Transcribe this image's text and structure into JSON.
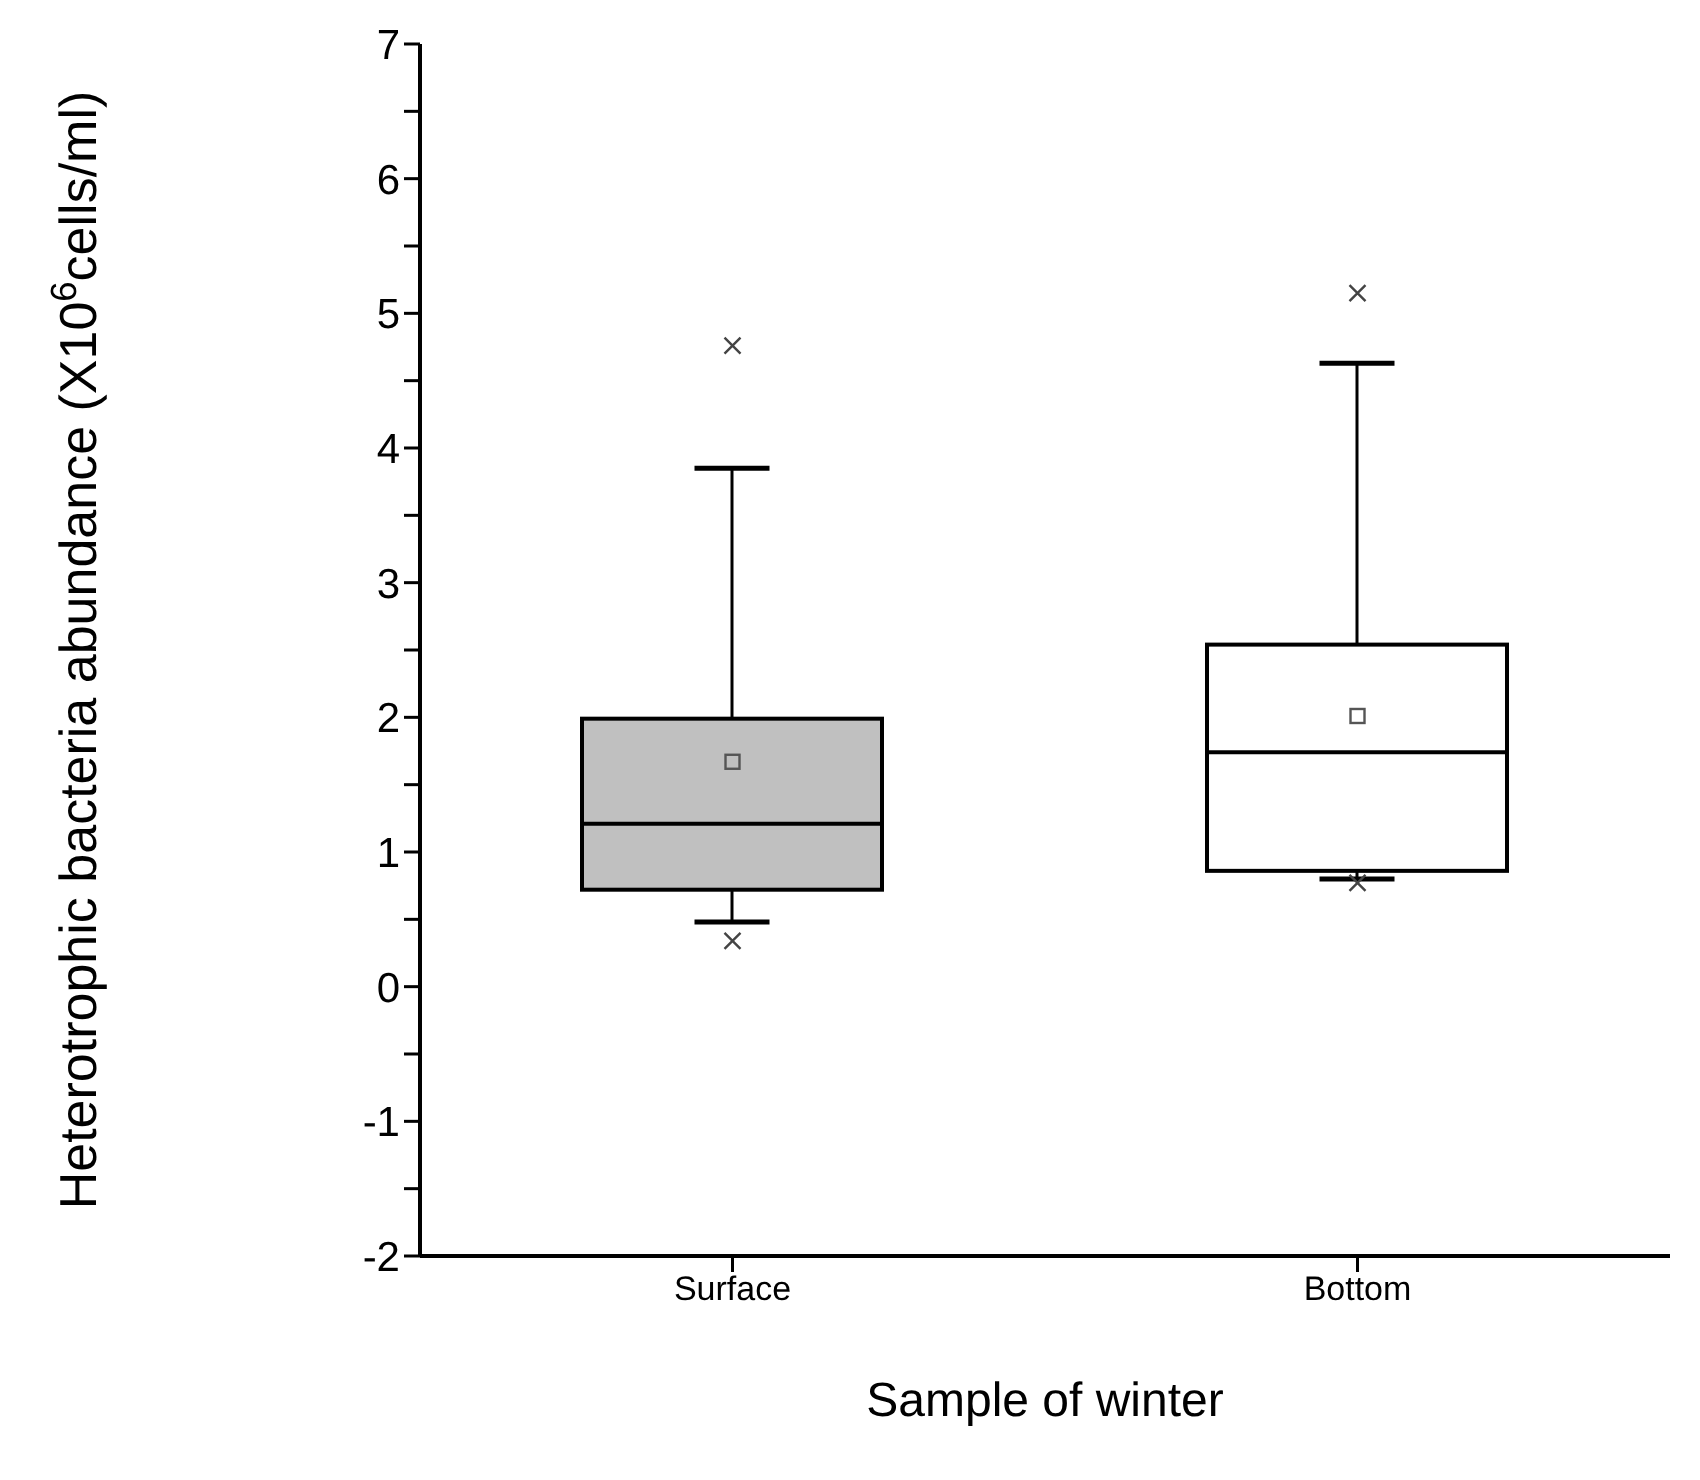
{
  "chart_data": {
    "type": "box",
    "xlabel": "Sample of winter",
    "ylabel": "Heterotrophic bacteria abundance (X10$^{6}$cells/ml)",
    "categories": [
      "Surface",
      "Bottom"
    ],
    "colors": [
      "#c0c0c0",
      "#ffffff"
    ],
    "boxes": [
      {
        "low": 0.48,
        "q1": 0.72,
        "median": 1.21,
        "q3": 1.99,
        "high": 3.85,
        "mean": 1.67,
        "outliers": [
          4.76,
          0.34
        ]
      },
      {
        "low": 0.8,
        "q1": 0.86,
        "median": 1.74,
        "q3": 2.54,
        "high": 4.63,
        "mean": 2.01,
        "outliers": [
          5.15,
          0.77
        ]
      }
    ],
    "ylim": [
      -2,
      7
    ],
    "yticks": [
      -2,
      {
        "value": -1.5,
        "label": null
      },
      -1,
      {
        "value": -0.5,
        "label": null
      },
      0,
      {
        "value": 0.5,
        "label": null
      },
      1,
      {
        "value": 1.5,
        "label": null
      },
      2,
      {
        "value": 2.5,
        "label": null
      },
      3,
      {
        "value": 3.5,
        "label": null
      },
      4,
      {
        "value": 4.5,
        "label": null
      },
      5,
      {
        "value": 5.5,
        "label": null
      },
      6,
      {
        "value": 6.5,
        "label": null
      },
      7
    ],
    "grid": false,
    "legend": false
  }
}
